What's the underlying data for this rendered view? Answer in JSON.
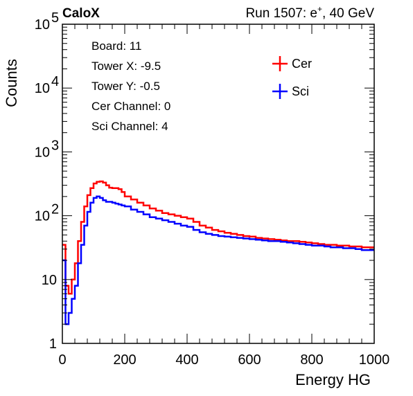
{
  "chart_data": {
    "type": "line",
    "header": {
      "left": "CaloX",
      "right_prefix": "Run 1507: e",
      "right_sup": "+",
      "right_suffix": ", 40 GeV"
    },
    "xlabel": "Energy HG",
    "ylabel": "Counts",
    "x_ticks": [
      "0",
      "200",
      "400",
      "600",
      "800",
      "1000"
    ],
    "y_ticks": [
      {
        "value": 1,
        "base": "1",
        "exp": ""
      },
      {
        "value": 10,
        "base": "10",
        "exp": ""
      },
      {
        "value": 100,
        "base": "10",
        "exp": "2"
      },
      {
        "value": 1000,
        "base": "10",
        "exp": "3"
      },
      {
        "value": 10000,
        "base": "10",
        "exp": "4"
      },
      {
        "value": 100000,
        "base": "10",
        "exp": "5"
      }
    ],
    "xlim": [
      0,
      1000
    ],
    "ylim": [
      1,
      100000
    ],
    "y_scale": "log",
    "info_lines": [
      "Board: 11",
      "Tower X: -9.5",
      "Tower Y: -0.5",
      "Cer Channel: 0",
      "Sci Channel: 4"
    ],
    "legend_position": "top-right",
    "series": [
      {
        "name": "Cer",
        "color": "#ff0000",
        "x": [
          0,
          10,
          20,
          30,
          40,
          50,
          60,
          70,
          80,
          90,
          100,
          110,
          120,
          130,
          140,
          150,
          160,
          170,
          180,
          190,
          200,
          220,
          240,
          260,
          280,
          300,
          320,
          340,
          360,
          380,
          400,
          420,
          440,
          460,
          480,
          500,
          520,
          540,
          560,
          580,
          600,
          620,
          640,
          660,
          680,
          700,
          720,
          740,
          760,
          780,
          800,
          820,
          840,
          860,
          880,
          900,
          920,
          940,
          960,
          980,
          1000
        ],
        "y": [
          35,
          8,
          6,
          10,
          18,
          40,
          80,
          140,
          210,
          270,
          320,
          340,
          345,
          330,
          300,
          275,
          270,
          270,
          260,
          235,
          200,
          180,
          160,
          145,
          130,
          120,
          110,
          105,
          100,
          95,
          90,
          80,
          70,
          65,
          60,
          57,
          54,
          52,
          50,
          48,
          47,
          45,
          44,
          43,
          42,
          41,
          40,
          40,
          39,
          38,
          37,
          36,
          35,
          35,
          34,
          34,
          33,
          33,
          32,
          32,
          32
        ]
      },
      {
        "name": "Sci",
        "color": "#0000ff",
        "x": [
          0,
          10,
          20,
          30,
          40,
          50,
          60,
          70,
          80,
          90,
          100,
          110,
          120,
          130,
          140,
          150,
          160,
          170,
          180,
          190,
          200,
          220,
          240,
          260,
          280,
          300,
          320,
          340,
          360,
          380,
          400,
          420,
          440,
          460,
          480,
          500,
          520,
          540,
          560,
          580,
          600,
          620,
          640,
          660,
          680,
          700,
          720,
          740,
          760,
          780,
          800,
          820,
          840,
          860,
          880,
          900,
          920,
          940,
          960,
          980,
          1000
        ],
        "y": [
          20,
          2,
          3,
          5,
          8,
          18,
          35,
          70,
          115,
          160,
          190,
          200,
          190,
          175,
          165,
          165,
          160,
          155,
          150,
          145,
          140,
          125,
          115,
          105,
          95,
          90,
          85,
          80,
          75,
          70,
          67,
          60,
          55,
          52,
          50,
          48,
          47,
          46,
          45,
          44,
          43,
          42,
          41,
          40,
          40,
          39,
          38,
          37,
          36,
          35,
          34,
          34,
          33,
          32,
          32,
          31,
          31,
          30,
          29,
          29,
          29
        ]
      }
    ]
  }
}
